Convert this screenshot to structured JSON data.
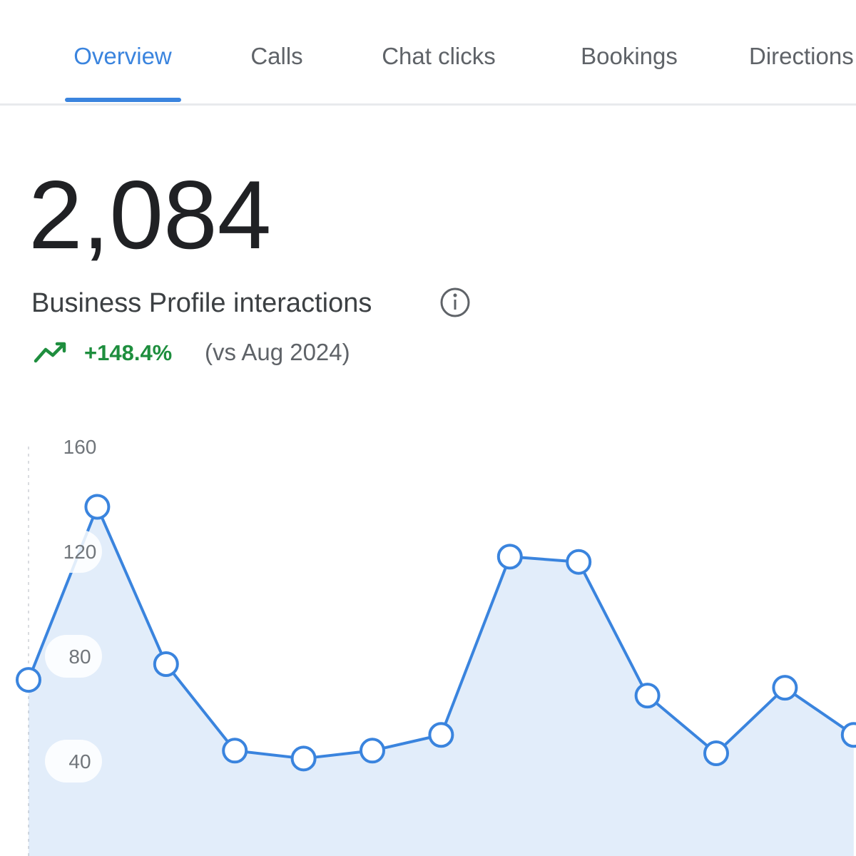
{
  "tabs": [
    "Overview",
    "Calls",
    "Chat clicks",
    "Bookings",
    "Directions"
  ],
  "metric": {
    "value": "2,084",
    "label": "Business Profile interactions",
    "change": "+148.4%",
    "comparison": "(vs Aug 2024)"
  },
  "chart_data": {
    "type": "line",
    "categories": [
      null,
      null,
      null,
      null,
      null,
      null,
      null,
      null,
      null,
      null,
      null,
      null,
      null
    ],
    "series": [
      {
        "name": "Business Profile interactions",
        "color": "#3a84de",
        "values": [
          71,
          137,
          77,
          44,
          41,
          44,
          50,
          118,
          116,
          65,
          43,
          68,
          50
        ]
      }
    ],
    "ylim": [
      0,
      160
    ],
    "yticks": [
      40,
      80,
      120,
      160
    ],
    "grid": false
  }
}
